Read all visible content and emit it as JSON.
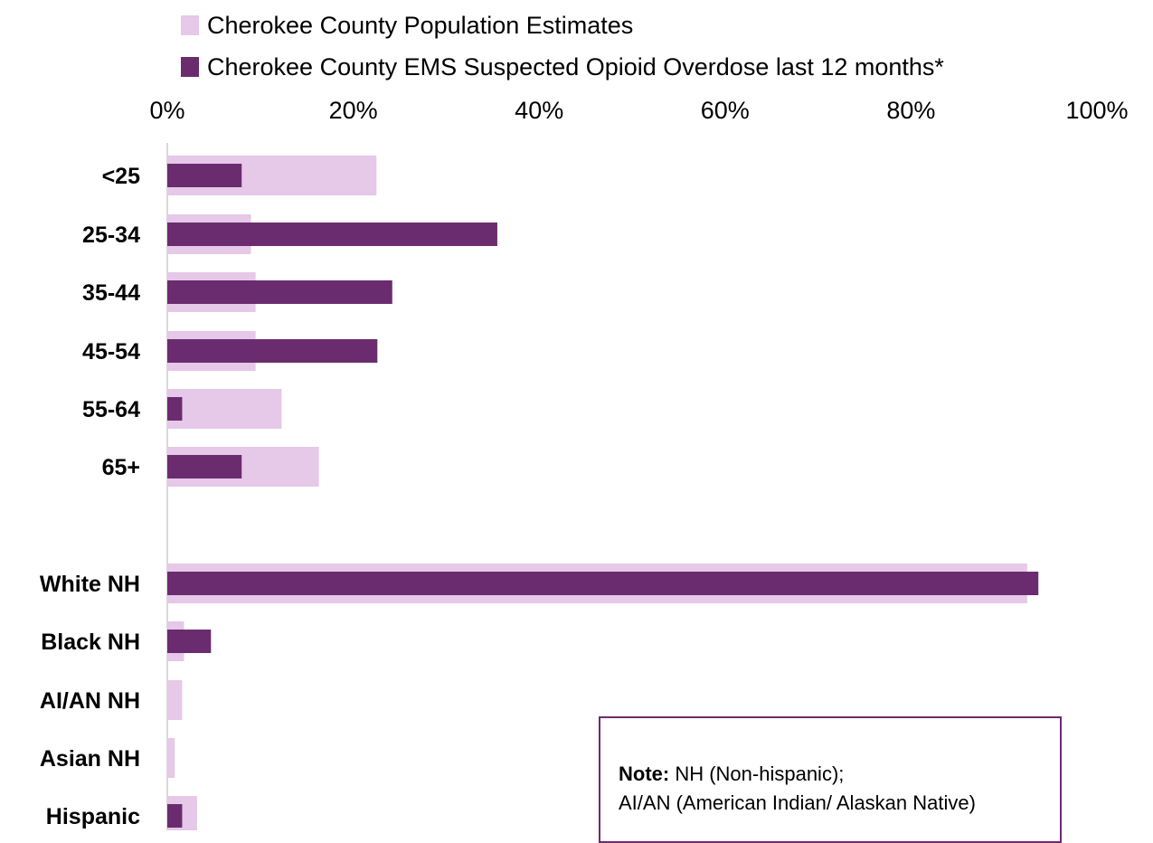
{
  "chart_data": {
    "type": "bar",
    "orientation": "horizontal",
    "legend_position": "top",
    "grid": false,
    "xlim": [
      0,
      100
    ],
    "x_ticks": [
      "0%",
      "20%",
      "40%",
      "60%",
      "80%",
      "100%"
    ],
    "categories": [
      "<25",
      "25-34",
      "35-44",
      "45-54",
      "55-64",
      "65+",
      "White NH",
      "Black NH",
      "AI/AN NH",
      "Asian NH",
      "Hispanic"
    ],
    "series": [
      {
        "name": "Cherokee County Population Estimates",
        "color": "#e6c8e8",
        "values": [
          22.5,
          9,
          9.5,
          9.5,
          12.3,
          16.3,
          92.5,
          1.8,
          1.6,
          0.8,
          3.2
        ]
      },
      {
        "name": "Cherokee County EMS Suspected Opioid Overdose last 12 months*",
        "color": "#6b2c6f",
        "values": [
          8,
          35.5,
          24.2,
          22.6,
          1.6,
          8,
          93.7,
          4.7,
          0,
          0,
          1.6
        ]
      }
    ]
  },
  "note": {
    "label": "Note:",
    "line1": " NH (Non-hispanic);",
    "line2": "AI/AN (American Indian/ Alaskan Native)"
  }
}
